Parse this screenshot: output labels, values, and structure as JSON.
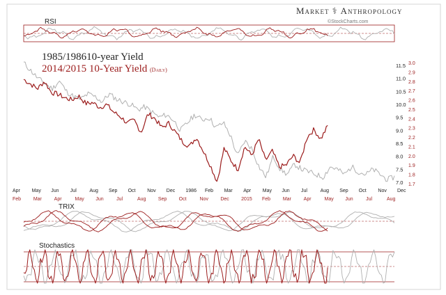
{
  "brand": {
    "left": "Market",
    "right": "Anthropology",
    "source": "©StockCharts.com"
  },
  "titles": {
    "series_a": "1985/198610-year Yield",
    "series_b": "2014/2015  10-Year Yield",
    "series_b_note": "(Daily)"
  },
  "panels": {
    "rsi": "RSI",
    "trix": "TRIX",
    "stochastics": "Stochastics"
  },
  "colors": {
    "series_a": "#b0b0b0",
    "series_b": "#9b1b1b",
    "frame": "#000000"
  },
  "chart_data": {
    "type": "line",
    "y_left_ticks": [
      "11.5",
      "11.0",
      "10.5",
      "10.0",
      "9.5",
      "9.0",
      "8.5",
      "8.0",
      "7.5",
      "7.0"
    ],
    "y_right_ticks": [
      "3.0",
      "2.9",
      "2.8",
      "2.7",
      "2.6",
      "2.5",
      "2.4",
      "2.3",
      "2.2",
      "2.1",
      "2.0",
      "1.9",
      "1.8",
      "1.7"
    ],
    "x_top": [
      "Apr",
      "May",
      "Jun",
      "Jul",
      "Aug",
      "Sep",
      "Oct",
      "Nov",
      "Dec",
      "1986",
      "Feb",
      "Mar",
      "Apr",
      "May",
      "Jun",
      "Jul",
      "Aug",
      "Sep",
      "Oct",
      "Nov",
      "Dec"
    ],
    "x_bottom": [
      "Feb",
      "Mar",
      "Apr",
      "May",
      "Jun",
      "Jul",
      "Aug",
      "Sep",
      "Oct",
      "Nov",
      "Dec",
      "2015",
      "Feb",
      "Mar",
      "Apr",
      "May",
      "Jun",
      "Jul",
      "Aug"
    ],
    "series": [
      {
        "name": "1985/198610-year Yield",
        "y": [
          11.6,
          11.3,
          11.0,
          10.8,
          10.6,
          10.9,
          10.5,
          10.3,
          10.2,
          10.4,
          10.3,
          10.1,
          10.4,
          10.2,
          10.1,
          10.0,
          9.8,
          9.9,
          9.7,
          9.5,
          9.6,
          9.4,
          9.0,
          9.3,
          9.6,
          9.4,
          9.5,
          9.1,
          9.3,
          8.8,
          8.0,
          8.6,
          8.3,
          7.6,
          7.2,
          8.0,
          7.5,
          7.3,
          7.7,
          7.5,
          7.4,
          7.3,
          7.2,
          7.6,
          7.5,
          7.3,
          7.6,
          7.4,
          7.3,
          7.5,
          7.3,
          7.1,
          7.2
        ]
      },
      {
        "name": "2014/2015  10-Year Yield",
        "y": [
          2.82,
          2.77,
          2.72,
          2.8,
          2.68,
          2.66,
          2.62,
          2.6,
          2.64,
          2.56,
          2.57,
          2.52,
          2.55,
          2.47,
          2.42,
          2.35,
          2.38,
          2.25,
          2.45,
          2.4,
          2.3,
          2.35,
          2.25,
          2.15,
          2.1,
          2.2,
          2.05,
          1.9,
          1.72,
          2.08,
          1.95,
          1.85,
          2.1,
          2.0,
          2.18,
          1.95,
          2.05,
          1.88,
          1.9,
          2.0,
          1.92,
          2.2,
          2.28,
          2.18,
          2.32
        ]
      }
    ]
  }
}
